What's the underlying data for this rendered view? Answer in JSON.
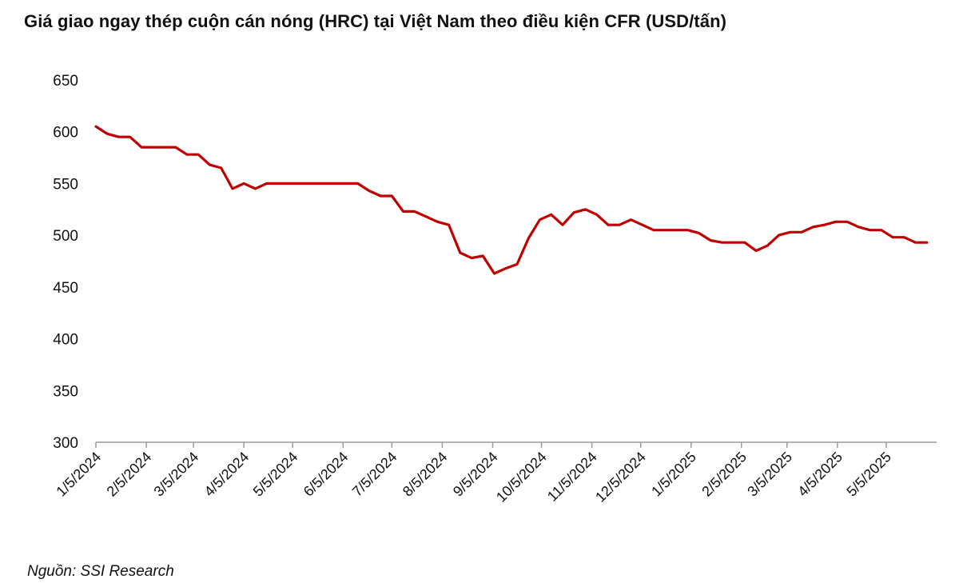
{
  "chart_data": {
    "type": "line",
    "title": "Giá giao ngay thép cuộn cán nóng (HRC) tại Việt Nam theo điều kiện CFR (USD/tấn)",
    "xlabel": "",
    "ylabel": "",
    "ylim": [
      300,
      650
    ],
    "yticks": [
      "300",
      "350",
      "400",
      "450",
      "500",
      "550",
      "600",
      "650"
    ],
    "xlim": [
      "2024-01-05",
      "2025-06-05"
    ],
    "xticks": [
      {
        "date": "2024-01-05",
        "label": "1/5/2024"
      },
      {
        "date": "2024-02-05",
        "label": "2/5/2024"
      },
      {
        "date": "2024-03-05",
        "label": "3/5/2024"
      },
      {
        "date": "2024-04-05",
        "label": "4/5/2024"
      },
      {
        "date": "2024-05-05",
        "label": "5/5/2024"
      },
      {
        "date": "2024-06-05",
        "label": "6/5/2024"
      },
      {
        "date": "2024-07-05",
        "label": "7/5/2024"
      },
      {
        "date": "2024-08-05",
        "label": "8/5/2024"
      },
      {
        "date": "2024-09-05",
        "label": "9/5/2024"
      },
      {
        "date": "2024-10-05",
        "label": "10/5/2024"
      },
      {
        "date": "2024-11-05",
        "label": "11/5/2024"
      },
      {
        "date": "2024-12-05",
        "label": "12/5/2024"
      },
      {
        "date": "2025-01-05",
        "label": "1/5/2025"
      },
      {
        "date": "2025-02-05",
        "label": "2/5/2025"
      },
      {
        "date": "2025-03-05",
        "label": "3/5/2025"
      },
      {
        "date": "2025-04-05",
        "label": "4/5/2025"
      },
      {
        "date": "2025-05-05",
        "label": "5/5/2025"
      }
    ],
    "grid": false,
    "legend": "none",
    "line_color": "#C00000",
    "series": [
      {
        "points": [
          [
            "2024-01-05",
            605
          ],
          [
            "2024-01-12",
            598
          ],
          [
            "2024-01-19",
            595
          ],
          [
            "2024-01-26",
            595
          ],
          [
            "2024-02-02",
            585
          ],
          [
            "2024-02-09",
            585
          ],
          [
            "2024-02-16",
            585
          ],
          [
            "2024-02-23",
            585
          ],
          [
            "2024-03-01",
            578
          ],
          [
            "2024-03-08",
            578
          ],
          [
            "2024-03-15",
            568
          ],
          [
            "2024-03-22",
            565
          ],
          [
            "2024-03-29",
            545
          ],
          [
            "2024-04-05",
            550
          ],
          [
            "2024-04-12",
            545
          ],
          [
            "2024-04-19",
            550
          ],
          [
            "2024-04-26",
            550
          ],
          [
            "2024-05-03",
            550
          ],
          [
            "2024-05-10",
            550
          ],
          [
            "2024-05-17",
            550
          ],
          [
            "2024-05-24",
            550
          ],
          [
            "2024-05-31",
            550
          ],
          [
            "2024-06-07",
            550
          ],
          [
            "2024-06-14",
            550
          ],
          [
            "2024-06-21",
            543
          ],
          [
            "2024-06-28",
            538
          ],
          [
            "2024-07-05",
            538
          ],
          [
            "2024-07-12",
            523
          ],
          [
            "2024-07-19",
            523
          ],
          [
            "2024-07-26",
            518
          ],
          [
            "2024-08-02",
            513
          ],
          [
            "2024-08-09",
            510
          ],
          [
            "2024-08-16",
            483
          ],
          [
            "2024-08-23",
            478
          ],
          [
            "2024-08-30",
            480
          ],
          [
            "2024-09-06",
            463
          ],
          [
            "2024-09-13",
            468
          ],
          [
            "2024-09-20",
            472
          ],
          [
            "2024-09-27",
            497
          ],
          [
            "2024-10-04",
            515
          ],
          [
            "2024-10-11",
            520
          ],
          [
            "2024-10-18",
            510
          ],
          [
            "2024-10-25",
            522
          ],
          [
            "2024-11-01",
            525
          ],
          [
            "2024-11-08",
            520
          ],
          [
            "2024-11-15",
            510
          ],
          [
            "2024-11-22",
            510
          ],
          [
            "2024-11-29",
            515
          ],
          [
            "2024-12-06",
            510
          ],
          [
            "2024-12-13",
            505
          ],
          [
            "2024-12-20",
            505
          ],
          [
            "2024-12-27",
            505
          ],
          [
            "2025-01-03",
            505
          ],
          [
            "2025-01-10",
            502
          ],
          [
            "2025-01-17",
            495
          ],
          [
            "2025-01-24",
            493
          ],
          [
            "2025-01-31",
            493
          ],
          [
            "2025-02-07",
            493
          ],
          [
            "2025-02-14",
            485
          ],
          [
            "2025-02-21",
            490
          ],
          [
            "2025-02-28",
            500
          ],
          [
            "2025-03-07",
            503
          ],
          [
            "2025-03-14",
            503
          ],
          [
            "2025-03-21",
            508
          ],
          [
            "2025-03-28",
            510
          ],
          [
            "2025-04-04",
            513
          ],
          [
            "2025-04-11",
            513
          ],
          [
            "2025-04-18",
            508
          ],
          [
            "2025-04-25",
            505
          ],
          [
            "2025-05-02",
            505
          ],
          [
            "2025-05-09",
            498
          ],
          [
            "2025-05-16",
            498
          ],
          [
            "2025-05-23",
            493
          ],
          [
            "2025-05-30",
            493
          ]
        ]
      }
    ]
  },
  "source": "Nguồn: SSI Research"
}
